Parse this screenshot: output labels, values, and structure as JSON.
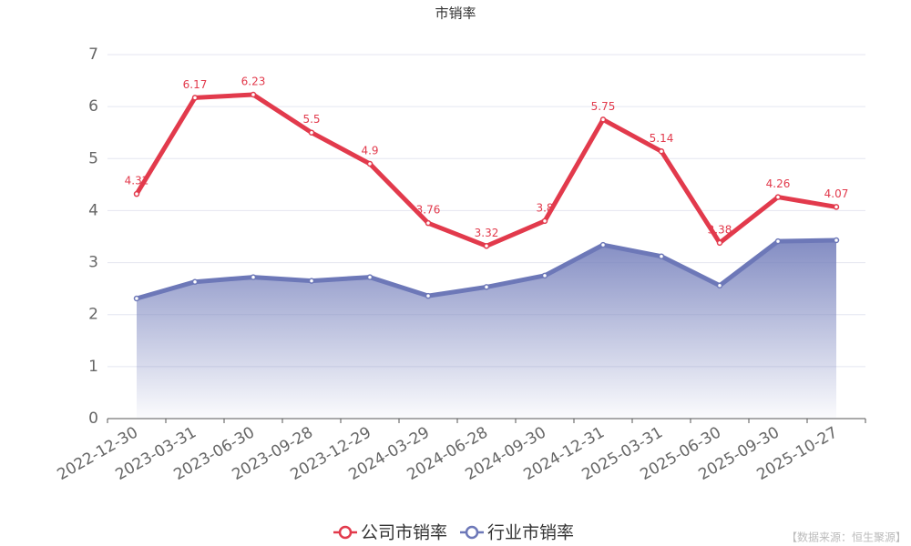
{
  "chart_data": {
    "type": "line",
    "title": "市销率",
    "categories": [
      "2022-12-30",
      "2023-03-31",
      "2023-06-30",
      "2023-09-28",
      "2023-12-29",
      "2024-03-29",
      "2024-06-28",
      "2024-09-30",
      "2024-12-31",
      "2025-03-31",
      "2025-06-30",
      "2025-09-30",
      "2025-10-27"
    ],
    "series": [
      {
        "name": "公司市销率",
        "color": "#e23a4c",
        "values": [
          4.32,
          6.17,
          6.23,
          5.5,
          4.9,
          3.76,
          3.32,
          3.8,
          5.75,
          5.14,
          3.38,
          4.26,
          4.07
        ],
        "labels": true
      },
      {
        "name": "行业市销率",
        "color": "#6d78b8",
        "values": [
          2.31,
          2.63,
          2.72,
          2.65,
          2.72,
          2.36,
          2.53,
          2.75,
          3.34,
          3.12,
          2.56,
          3.41,
          3.43
        ],
        "area": true
      }
    ],
    "ylim": [
      0,
      7
    ],
    "yticks": [
      0,
      1,
      2,
      3,
      4,
      5,
      6,
      7
    ],
    "grid": true,
    "source": "【数据来源：恒生聚源】"
  }
}
